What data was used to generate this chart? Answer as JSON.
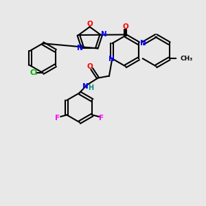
{
  "bg_color": "#e8e8e8",
  "bond_color": "#000000",
  "title": "",
  "atoms": {
    "Cl": {
      "color": "#00aa00",
      "size": 9
    },
    "N": {
      "color": "#0000ff",
      "size": 9
    },
    "O": {
      "color": "#ff0000",
      "size": 9
    },
    "F": {
      "color": "#ff00ff",
      "size": 9
    },
    "H": {
      "color": "#008888",
      "size": 9
    },
    "C": {
      "color": "#000000",
      "size": 0
    }
  },
  "figsize": [
    3.0,
    3.0
  ],
  "dpi": 100
}
